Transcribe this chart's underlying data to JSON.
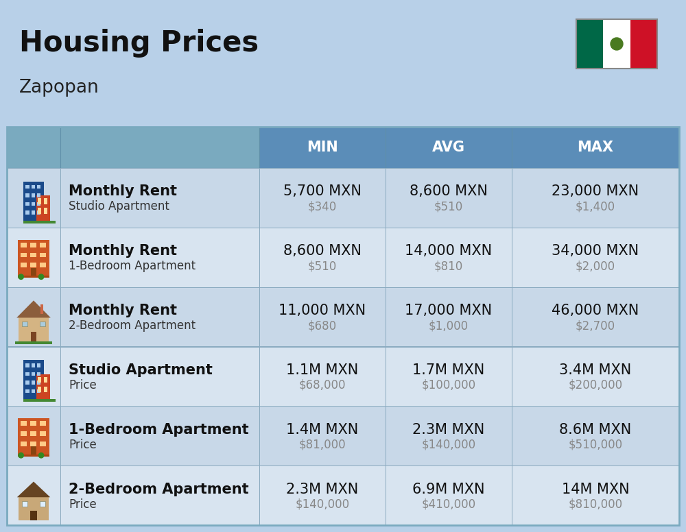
{
  "title": "Housing Prices",
  "subtitle": "Zapopan",
  "bg_color": "#b8d0e8",
  "header_bg": "#5b8db8",
  "header_text_color": "#ffffff",
  "row_colors": [
    "#c8d8e8",
    "#d8e4f0"
  ],
  "col_header": [
    "MIN",
    "AVG",
    "MAX"
  ],
  "rows": [
    {
      "bold_label": "Monthly Rent",
      "sub_label": "Studio Apartment",
      "icon_type": "apt_blue",
      "min_mxn": "5,700 MXN",
      "min_usd": "$340",
      "avg_mxn": "8,600 MXN",
      "avg_usd": "$510",
      "max_mxn": "23,000 MXN",
      "max_usd": "$1,400"
    },
    {
      "bold_label": "Monthly Rent",
      "sub_label": "1-Bedroom Apartment",
      "icon_type": "apt_orange",
      "min_mxn": "8,600 MXN",
      "min_usd": "$510",
      "avg_mxn": "14,000 MXN",
      "avg_usd": "$810",
      "max_mxn": "34,000 MXN",
      "max_usd": "$2,000"
    },
    {
      "bold_label": "Monthly Rent",
      "sub_label": "2-Bedroom Apartment",
      "icon_type": "house_beige",
      "min_mxn": "11,000 MXN",
      "min_usd": "$680",
      "avg_mxn": "17,000 MXN",
      "avg_usd": "$1,000",
      "max_mxn": "46,000 MXN",
      "max_usd": "$2,700"
    },
    {
      "bold_label": "Studio Apartment",
      "sub_label": "Price",
      "icon_type": "apt_blue",
      "min_mxn": "1.1M MXN",
      "min_usd": "$68,000",
      "avg_mxn": "1.7M MXN",
      "avg_usd": "$100,000",
      "max_mxn": "3.4M MXN",
      "max_usd": "$200,000"
    },
    {
      "bold_label": "1-Bedroom Apartment",
      "sub_label": "Price",
      "icon_type": "apt_orange",
      "min_mxn": "1.4M MXN",
      "min_usd": "$81,000",
      "avg_mxn": "2.3M MXN",
      "avg_usd": "$140,000",
      "max_mxn": "8.6M MXN",
      "max_usd": "$510,000"
    },
    {
      "bold_label": "2-Bedroom Apartment",
      "sub_label": "Price",
      "icon_type": "house_brown",
      "min_mxn": "2.3M MXN",
      "min_usd": "$140,000",
      "avg_mxn": "6.9M MXN",
      "avg_usd": "$410,000",
      "max_mxn": "14M MXN",
      "max_usd": "$810,000"
    }
  ],
  "title_fontsize": 30,
  "subtitle_fontsize": 19,
  "header_fontsize": 15,
  "cell_fontsize": 15,
  "cell_sub_fontsize": 12
}
